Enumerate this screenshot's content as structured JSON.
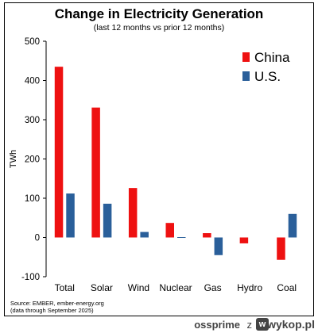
{
  "chart_data": {
    "type": "bar",
    "title": "Change in Electricity Generation",
    "subtitle": "(last 12 months vs prior 12 months)",
    "ylabel": "TWh",
    "xlabel": "",
    "categories": [
      "Total",
      "Solar",
      "Wind",
      "Nuclear",
      "Gas",
      "Hydro",
      "Coal"
    ],
    "series": [
      {
        "name": "China",
        "color": "#ee1111",
        "values": [
          435,
          331,
          126,
          37,
          11,
          -15,
          -57
        ]
      },
      {
        "name": "U.S.",
        "color": "#2a5f9a",
        "values": [
          112,
          86,
          14,
          1,
          -45,
          0,
          60
        ]
      }
    ],
    "ylim": [
      -100,
      500
    ],
    "yticks": [
      -100,
      0,
      100,
      200,
      300,
      400,
      500
    ],
    "legend_position": "top-right",
    "grid": false
  },
  "source": {
    "line1": "Source: EMBER, ember-energy.org",
    "line2": "(data through September 2025)"
  },
  "footer": {
    "user": "ossprime",
    "z": "z",
    "brand": "wykop.pl",
    "logo_letter": "w"
  }
}
